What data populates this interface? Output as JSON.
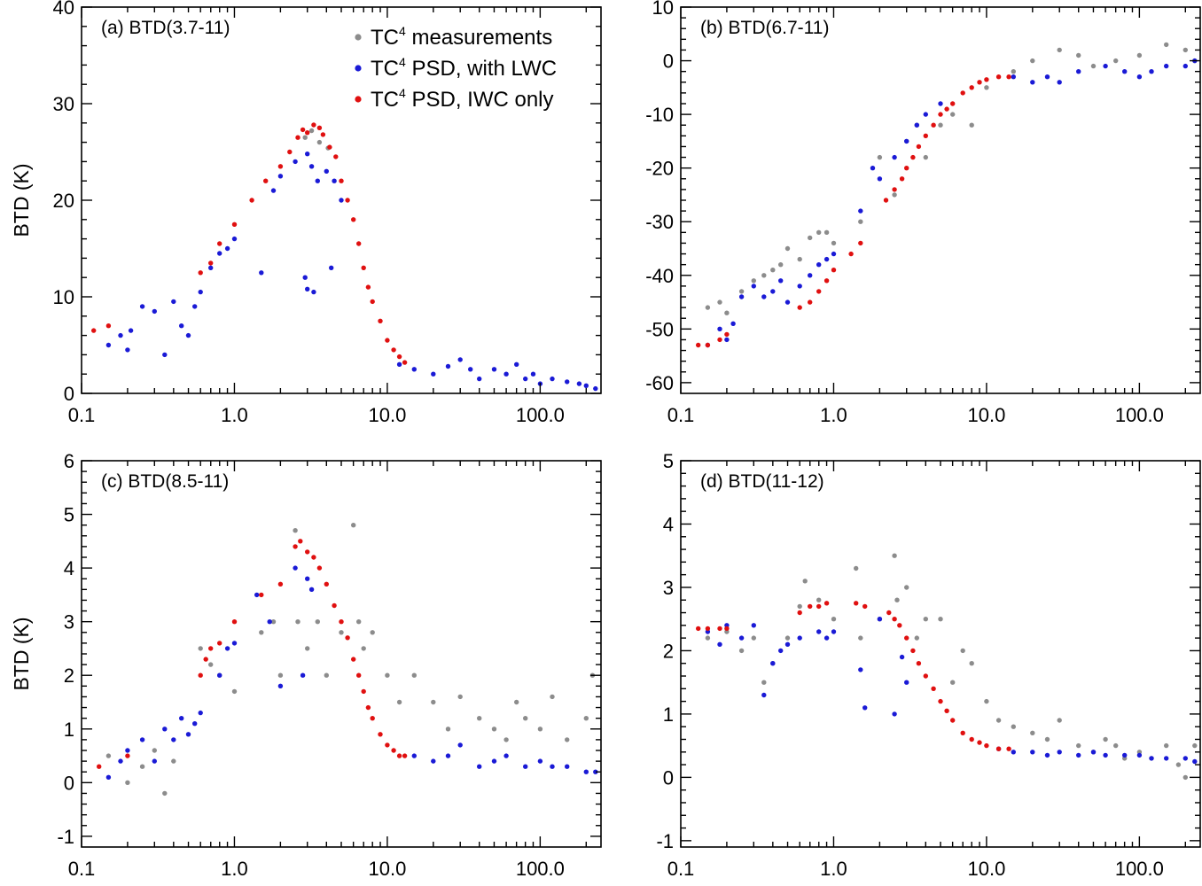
{
  "colors": {
    "measurements": "#8c8c8c",
    "with_lwc": "#1a1ad6",
    "iwc_only": "#e01010"
  },
  "legend": {
    "entries": [
      {
        "prefix": "TC",
        "sup": "4",
        "text": " measurements",
        "color": "#8c8c8c"
      },
      {
        "prefix": "TC",
        "sup": "4",
        "text": " PSD, with LWC",
        "color": "#1a1ad6"
      },
      {
        "prefix": "TC",
        "sup": "4",
        "text": " PSD, IWC only",
        "color": "#e01010"
      }
    ]
  },
  "chart_data": [
    {
      "type": "scatter",
      "title": "(a) BTD(3.7-11)",
      "ylabel": "BTD (K)",
      "xlabel": "",
      "xscale": "log",
      "xlim": [
        0.1,
        250
      ],
      "ylim": [
        0,
        40
      ],
      "xticks": [
        0.1,
        1.0,
        10.0,
        100.0
      ],
      "xtick_labels": [
        "0.1",
        "1.0",
        "10.0",
        "100.0"
      ],
      "yticks": [
        0,
        10,
        20,
        30,
        40
      ],
      "ytick_labels": [
        "0",
        "10",
        "20",
        "30",
        "40"
      ],
      "series": [
        {
          "name": "TC4 measurements",
          "key": "measurements",
          "x": [
            2.9,
            3.2,
            3.6,
            4.1
          ],
          "y": [
            26.5,
            27.2,
            26.0,
            25.4
          ]
        },
        {
          "name": "TC4 PSD, with LWC",
          "key": "with_lwc",
          "x": [
            0.15,
            0.18,
            0.2,
            0.21,
            0.25,
            0.3,
            0.35,
            0.4,
            0.45,
            0.5,
            0.55,
            0.6,
            0.7,
            0.8,
            0.9,
            1.0,
            1.5,
            1.8,
            2.0,
            2.5,
            3.0,
            3.2,
            3.5,
            4.0,
            4.5,
            5.0,
            3.0,
            3.3,
            2.9,
            4.3,
            12,
            15,
            20,
            25,
            30,
            35,
            40,
            50,
            60,
            70,
            80,
            90,
            100,
            120,
            150,
            180,
            200,
            230
          ],
          "y": [
            5.0,
            6.0,
            4.5,
            6.5,
            9.0,
            8.5,
            4.0,
            9.5,
            7.0,
            6.0,
            9.0,
            10.5,
            13.0,
            14.5,
            15.0,
            16.0,
            12.5,
            21.0,
            22.5,
            24.0,
            24.8,
            23.5,
            22.0,
            23.0,
            22.0,
            20.0,
            10.8,
            10.5,
            12.0,
            13.0,
            3.0,
            2.5,
            2.0,
            2.8,
            3.5,
            2.5,
            1.5,
            2.5,
            2.0,
            3.0,
            1.5,
            2.0,
            1.0,
            1.5,
            1.2,
            1.0,
            0.8,
            0.5
          ]
        },
        {
          "name": "TC4 PSD, IWC only",
          "key": "iwc_only",
          "x": [
            0.12,
            0.15,
            0.6,
            0.7,
            0.8,
            1.0,
            1.3,
            1.6,
            2.0,
            2.3,
            2.6,
            2.8,
            3.0,
            3.3,
            3.6,
            3.8,
            4.2,
            4.6,
            5.0,
            5.5,
            6.0,
            6.5,
            7.0,
            7.5,
            8.0,
            9.0,
            10.0,
            11.0,
            12.0,
            13.0
          ],
          "y": [
            6.5,
            7.0,
            12.5,
            13.5,
            15.5,
            17.5,
            20.0,
            22.0,
            23.5,
            25.0,
            26.5,
            27.3,
            27.0,
            27.8,
            27.5,
            26.8,
            25.5,
            24.5,
            22.0,
            20.0,
            18.0,
            15.5,
            13.0,
            11.0,
            9.5,
            7.5,
            5.5,
            4.5,
            3.8,
            3.2
          ]
        }
      ]
    },
    {
      "type": "scatter",
      "title": "(b) BTD(6.7-11)",
      "ylabel": "",
      "xlabel": "",
      "xscale": "log",
      "xlim": [
        0.1,
        250
      ],
      "ylim": [
        -62,
        10
      ],
      "xticks": [
        0.1,
        1.0,
        10.0,
        100.0
      ],
      "xtick_labels": [
        "0.1",
        "1.0",
        "10.0",
        "100.0"
      ],
      "yticks": [
        -60,
        -50,
        -40,
        -30,
        -20,
        -10,
        0,
        10
      ],
      "ytick_labels": [
        "-60",
        "-50",
        "-40",
        "-30",
        "-20",
        "-10",
        "0",
        "10"
      ],
      "series": [
        {
          "name": "TC4 measurements",
          "key": "measurements",
          "x": [
            0.15,
            0.18,
            0.2,
            0.25,
            0.3,
            0.35,
            0.4,
            0.45,
            0.5,
            0.6,
            0.7,
            0.8,
            0.9,
            1.0,
            1.5,
            2.0,
            2.5,
            3.0,
            3.5,
            4.0,
            5.0,
            6.0,
            8.0,
            10,
            15,
            20,
            30,
            40,
            50,
            70,
            100,
            150,
            200,
            230
          ],
          "y": [
            -46,
            -45,
            -47,
            -43,
            -41,
            -40,
            -39,
            -38,
            -35,
            -37,
            -33,
            -32,
            -32,
            -34,
            -30,
            -18,
            -25,
            -15,
            -12,
            -18,
            -12,
            -10,
            -12,
            -5,
            -2,
            0,
            2,
            1,
            -1,
            0,
            1,
            3,
            2,
            0
          ]
        },
        {
          "name": "TC4 PSD, with LWC",
          "key": "with_lwc",
          "x": [
            0.15,
            0.18,
            0.2,
            0.22,
            0.25,
            0.3,
            0.35,
            0.4,
            0.45,
            0.5,
            0.6,
            0.7,
            0.8,
            0.9,
            1.0,
            1.5,
            1.8,
            2.0,
            2.5,
            3.0,
            3.5,
            4.0,
            5.0,
            15,
            20,
            25,
            30,
            40,
            60,
            80,
            100,
            120,
            150,
            200,
            230
          ],
          "y": [
            -53,
            -50,
            -52,
            -49,
            -44,
            -42,
            -44,
            -43,
            -41,
            -45,
            -42,
            -40,
            -38,
            -37,
            -36,
            -28,
            -20,
            -22,
            -18,
            -15,
            -12,
            -10,
            -8,
            -3,
            -4,
            -3,
            -4,
            -2,
            -1,
            -2,
            -3,
            -2,
            -1,
            -1,
            0
          ]
        },
        {
          "name": "TC4 PSD, IWC only",
          "key": "iwc_only",
          "x": [
            0.13,
            0.15,
            0.18,
            0.2,
            0.6,
            0.7,
            0.8,
            0.9,
            1.0,
            1.3,
            1.5,
            2.2,
            2.5,
            2.8,
            3.0,
            3.3,
            3.6,
            4.0,
            4.5,
            5.0,
            5.5,
            6.0,
            7.0,
            8.0,
            9.0,
            10,
            12,
            14
          ],
          "y": [
            -53,
            -53,
            -52,
            -51,
            -46,
            -45,
            -43,
            -41,
            -39,
            -36,
            -34,
            -26,
            -24,
            -22,
            -20,
            -18,
            -16,
            -14,
            -12,
            -10,
            -9,
            -8,
            -6,
            -5,
            -4,
            -3.5,
            -3,
            -3
          ]
        }
      ]
    },
    {
      "type": "scatter",
      "title": "(c) BTD(8.5-11)",
      "ylabel": "BTD (K)",
      "xlabel": "",
      "xscale": "log",
      "xlim": [
        0.1,
        250
      ],
      "ylim": [
        -1.2,
        6
      ],
      "xticks": [
        0.1,
        1.0,
        10.0,
        100.0
      ],
      "xtick_labels": [
        "0.1",
        "1.0",
        "10.0",
        "100.0"
      ],
      "yticks": [
        -1,
        0,
        1,
        2,
        3,
        4,
        5,
        6
      ],
      "ytick_labels": [
        "-1",
        "0",
        "1",
        "2",
        "3",
        "4",
        "5",
        "6"
      ],
      "series": [
        {
          "name": "TC4 measurements",
          "key": "measurements",
          "x": [
            0.15,
            0.2,
            0.25,
            0.3,
            0.35,
            0.4,
            0.6,
            0.7,
            0.8,
            1.0,
            1.5,
            1.8,
            2.0,
            2.5,
            2.6,
            3.0,
            3.5,
            4.0,
            5.0,
            6.0,
            6.5,
            7.0,
            8.0,
            10,
            12,
            15,
            20,
            25,
            30,
            40,
            50,
            60,
            70,
            80,
            100,
            120,
            150,
            200,
            220
          ],
          "y": [
            0.5,
            0.0,
            0.3,
            0.6,
            -0.2,
            0.4,
            2.5,
            2.2,
            2.0,
            1.7,
            2.8,
            3.0,
            2.0,
            4.7,
            3.0,
            2.5,
            3.0,
            2.0,
            2.8,
            4.8,
            3.0,
            2.5,
            2.8,
            2.0,
            1.5,
            2.0,
            1.5,
            1.0,
            1.6,
            1.2,
            1.0,
            0.8,
            1.5,
            1.2,
            1.0,
            1.6,
            0.8,
            1.2,
            2.0
          ]
        },
        {
          "name": "TC4 PSD, with LWC",
          "key": "with_lwc",
          "x": [
            0.15,
            0.18,
            0.2,
            0.25,
            0.3,
            0.35,
            0.4,
            0.45,
            0.5,
            0.55,
            0.6,
            0.8,
            0.9,
            1.0,
            1.4,
            1.7,
            2.0,
            2.5,
            2.8,
            3.0,
            3.2,
            15,
            20,
            25,
            30,
            40,
            50,
            60,
            80,
            100,
            120,
            150,
            200,
            230
          ],
          "y": [
            0.1,
            0.4,
            0.6,
            0.8,
            0.4,
            1.0,
            0.8,
            1.2,
            0.9,
            1.1,
            1.3,
            2.0,
            2.5,
            2.6,
            3.5,
            3.0,
            1.8,
            4.0,
            2.0,
            3.8,
            3.6,
            0.5,
            0.4,
            0.5,
            0.7,
            0.3,
            0.4,
            0.5,
            0.3,
            0.4,
            0.3,
            0.3,
            0.2,
            0.2
          ]
        },
        {
          "name": "TC4 PSD, IWC only",
          "key": "iwc_only",
          "x": [
            0.13,
            0.2,
            0.6,
            0.65,
            0.7,
            0.8,
            1.0,
            1.5,
            2.0,
            2.5,
            2.7,
            3.0,
            3.3,
            3.6,
            4.0,
            4.5,
            5.0,
            5.5,
            6.0,
            6.5,
            7.0,
            7.5,
            8.0,
            9.0,
            10,
            11,
            12,
            13
          ],
          "y": [
            0.3,
            0.5,
            2.0,
            2.3,
            2.5,
            2.6,
            3.0,
            3.5,
            3.7,
            4.4,
            4.5,
            4.3,
            4.2,
            4.0,
            3.7,
            3.3,
            3.0,
            2.7,
            2.3,
            2.0,
            1.7,
            1.4,
            1.2,
            0.9,
            0.7,
            0.6,
            0.5,
            0.5
          ]
        }
      ]
    },
    {
      "type": "scatter",
      "title": "(d) BTD(11-12)",
      "ylabel": "",
      "xlabel": "",
      "xscale": "log",
      "xlim": [
        0.1,
        250
      ],
      "ylim": [
        -1.1,
        5
      ],
      "xticks": [
        0.1,
        1.0,
        10.0,
        100.0
      ],
      "xtick_labels": [
        "0.1",
        "1.0",
        "10.0",
        "100.0"
      ],
      "yticks": [
        -1,
        0,
        1,
        2,
        3,
        4,
        5
      ],
      "ytick_labels": [
        "-1",
        "0",
        "1",
        "2",
        "3",
        "4",
        "5"
      ],
      "series": [
        {
          "name": "TC4 measurements",
          "key": "measurements",
          "x": [
            0.15,
            0.2,
            0.25,
            0.3,
            0.35,
            0.4,
            0.5,
            0.6,
            0.65,
            0.8,
            1.0,
            1.4,
            1.5,
            2.0,
            2.5,
            2.6,
            3.0,
            3.5,
            4.0,
            5.0,
            6.0,
            7.0,
            8.0,
            10,
            12,
            15,
            20,
            25,
            30,
            40,
            50,
            60,
            70,
            80,
            100,
            120,
            150,
            180,
            200,
            230
          ],
          "y": [
            2.2,
            2.3,
            2.0,
            2.2,
            1.5,
            1.8,
            2.2,
            2.7,
            3.1,
            2.8,
            2.5,
            3.3,
            2.2,
            2.5,
            3.5,
            2.8,
            3.0,
            2.2,
            2.5,
            2.5,
            1.5,
            2.0,
            1.8,
            1.2,
            0.9,
            0.8,
            0.7,
            0.6,
            0.9,
            0.5,
            0.4,
            0.6,
            0.5,
            0.3,
            0.4,
            0.3,
            0.5,
            0.2,
            0.0,
            0.5
          ]
        },
        {
          "name": "TC4 PSD, with LWC",
          "key": "with_lwc",
          "x": [
            0.15,
            0.18,
            0.2,
            0.25,
            0.3,
            0.35,
            0.4,
            0.45,
            0.5,
            0.6,
            0.8,
            0.9,
            1.0,
            1.5,
            1.6,
            2.0,
            2.5,
            2.8,
            3.0,
            12,
            15,
            20,
            25,
            30,
            40,
            50,
            60,
            80,
            100,
            120,
            150,
            200,
            230
          ],
          "y": [
            2.3,
            2.1,
            2.4,
            2.2,
            2.4,
            1.3,
            1.8,
            2.0,
            2.1,
            2.2,
            2.3,
            2.2,
            2.3,
            1.7,
            1.1,
            2.5,
            1.0,
            1.9,
            1.5,
            0.45,
            0.4,
            0.4,
            0.35,
            0.4,
            0.35,
            0.4,
            0.35,
            0.35,
            0.35,
            0.3,
            0.3,
            0.3,
            0.25
          ]
        },
        {
          "name": "TC4 PSD, IWC only",
          "key": "iwc_only",
          "x": [
            0.13,
            0.15,
            0.18,
            0.2,
            0.6,
            0.7,
            0.8,
            0.9,
            1.4,
            1.6,
            2.3,
            2.5,
            2.7,
            3.0,
            3.3,
            3.6,
            4.0,
            4.5,
            5.0,
            5.5,
            6.0,
            7.0,
            8.0,
            9.0,
            10,
            12,
            14
          ],
          "y": [
            2.35,
            2.35,
            2.35,
            2.35,
            2.6,
            2.7,
            2.7,
            2.75,
            2.75,
            2.7,
            2.6,
            2.5,
            2.4,
            2.2,
            2.0,
            1.8,
            1.6,
            1.4,
            1.2,
            1.05,
            0.9,
            0.7,
            0.6,
            0.55,
            0.5,
            0.45,
            0.45
          ]
        }
      ]
    }
  ]
}
